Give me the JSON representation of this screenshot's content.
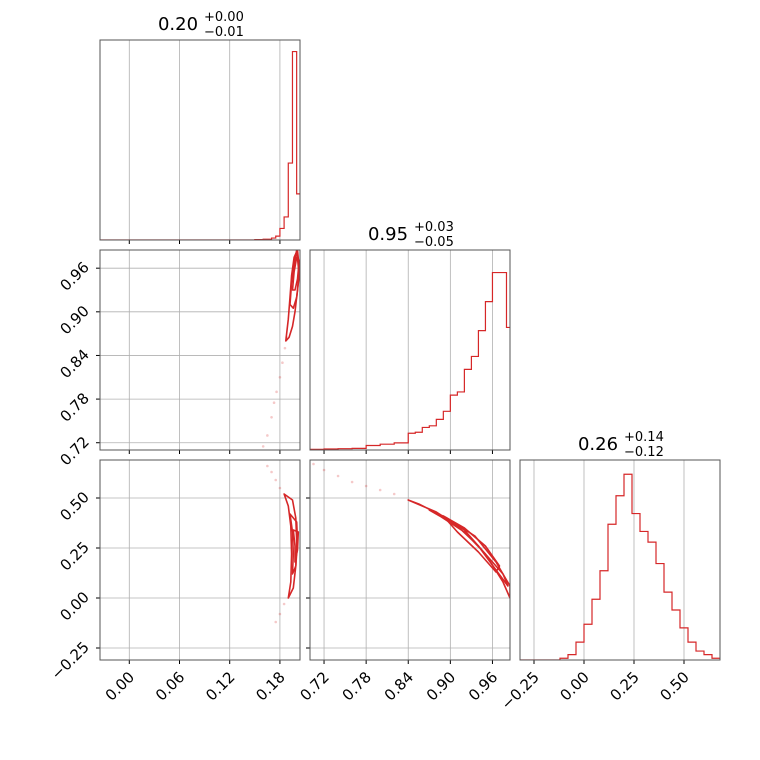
{
  "chart_data": {
    "type": "corner",
    "color": "#d62728",
    "panels": [
      {
        "id": "hist-p0",
        "kind": "histogram",
        "title": {
          "value": "0.20",
          "plus": "+0.00",
          "minus": "−0.01"
        },
        "xlim": [
          -0.035,
          0.204
        ],
        "xticks": [
          0.0,
          0.06,
          0.12,
          0.18
        ],
        "bins": [
          0.15,
          0.16,
          0.17,
          0.175,
          0.18,
          0.185,
          0.19,
          0.195,
          0.2,
          0.204
        ],
        "counts": [
          0.01,
          0.02,
          0.05,
          0.1,
          0.3,
          0.6,
          2.0,
          4.9,
          1.2
        ],
        "ymax": 5.2
      },
      {
        "id": "hist-p1",
        "kind": "histogram",
        "title": {
          "value": "0.95",
          "plus": "+0.03",
          "minus": "−0.05"
        },
        "xlim": [
          0.7,
          0.985
        ],
        "xticks": [
          0.72,
          0.78,
          0.84,
          0.9,
          0.96
        ],
        "bins": [
          0.7,
          0.72,
          0.74,
          0.76,
          0.78,
          0.8,
          0.82,
          0.84,
          0.85,
          0.86,
          0.87,
          0.88,
          0.89,
          0.9,
          0.91,
          0.92,
          0.93,
          0.94,
          0.95,
          0.96,
          0.97,
          0.98,
          0.985
        ],
        "counts": [
          0.02,
          0.03,
          0.04,
          0.05,
          0.14,
          0.18,
          0.22,
          0.52,
          0.55,
          0.7,
          0.75,
          0.95,
          1.2,
          1.7,
          1.8,
          2.5,
          2.9,
          3.7,
          4.6,
          5.5,
          5.5,
          3.8
        ],
        "ymax": 6.2
      },
      {
        "id": "hist-p2",
        "kind": "histogram",
        "title": {
          "value": "0.26",
          "plus": "+0.14",
          "minus": "−0.12"
        },
        "xlim": [
          -0.32,
          0.68
        ],
        "xticks": [
          -0.25,
          0.0,
          0.25,
          0.5
        ],
        "bins": [
          -0.12,
          -0.08,
          -0.04,
          0.0,
          0.04,
          0.08,
          0.12,
          0.16,
          0.2,
          0.24,
          0.28,
          0.32,
          0.36,
          0.4,
          0.44,
          0.48,
          0.52,
          0.56,
          0.6,
          0.64,
          0.68
        ],
        "counts": [
          0.05,
          0.15,
          0.5,
          1.0,
          1.7,
          2.5,
          3.8,
          4.6,
          5.2,
          4.1,
          3.6,
          3.3,
          2.7,
          1.9,
          1.4,
          0.9,
          0.5,
          0.25,
          0.15,
          0.05
        ],
        "ymax": 5.6
      },
      {
        "id": "contour-p0-p1",
        "kind": "contour",
        "xlim": [
          -0.035,
          0.204
        ],
        "ylim": [
          0.71,
          0.985
        ],
        "xticks": [
          0.0,
          0.06,
          0.12,
          0.18
        ],
        "yticks": [
          0.72,
          0.78,
          0.84,
          0.9,
          0.96
        ],
        "scatter": [
          [
            0.16,
            0.715
          ],
          [
            0.165,
            0.73
          ],
          [
            0.17,
            0.755
          ],
          [
            0.173,
            0.775
          ],
          [
            0.176,
            0.79
          ],
          [
            0.18,
            0.81
          ],
          [
            0.183,
            0.83
          ],
          [
            0.186,
            0.85
          ],
          [
            0.188,
            0.865
          ]
        ],
        "contours": [
          [
            [
              0.187,
              0.86
            ],
            [
              0.19,
              0.89
            ],
            [
              0.192,
              0.92
            ],
            [
              0.194,
              0.95
            ],
            [
              0.197,
              0.975
            ],
            [
              0.201,
              0.985
            ],
            [
              0.203,
              0.96
            ],
            [
              0.201,
              0.93
            ],
            [
              0.198,
              0.9
            ],
            [
              0.195,
              0.88
            ],
            [
              0.191,
              0.865
            ]
          ],
          [
            [
              0.192,
              0.91
            ],
            [
              0.194,
              0.94
            ],
            [
              0.197,
              0.965
            ],
            [
              0.2,
              0.985
            ],
            [
              0.203,
              0.95
            ],
            [
              0.2,
              0.92
            ],
            [
              0.196,
              0.905
            ]
          ],
          [
            [
              0.195,
              0.93
            ],
            [
              0.197,
              0.955
            ],
            [
              0.2,
              0.975
            ],
            [
              0.203,
              0.97
            ],
            [
              0.201,
              0.945
            ],
            [
              0.198,
              0.93
            ]
          ]
        ]
      },
      {
        "id": "contour-p0-p2",
        "kind": "contour",
        "xlim": [
          -0.035,
          0.204
        ],
        "ylim": [
          -0.31,
          0.69
        ],
        "xticks": [
          0.0,
          0.06,
          0.12,
          0.18
        ],
        "yticks": [
          -0.25,
          0.0,
          0.25,
          0.5
        ],
        "scatter": [
          [
            0.165,
            0.66
          ],
          [
            0.17,
            0.63
          ],
          [
            0.175,
            0.59
          ],
          [
            0.18,
            0.55
          ],
          [
            0.185,
            -0.03
          ],
          [
            0.18,
            -0.08
          ],
          [
            0.175,
            -0.12
          ]
        ],
        "contours": [
          [
            [
              0.185,
              0.52
            ],
            [
              0.19,
              0.46
            ],
            [
              0.193,
              0.36
            ],
            [
              0.194,
              0.22
            ],
            [
              0.193,
              0.08
            ],
            [
              0.19,
              0.0
            ],
            [
              0.196,
              0.05
            ],
            [
              0.199,
              0.16
            ],
            [
              0.2,
              0.28
            ],
            [
              0.199,
              0.4
            ],
            [
              0.195,
              0.49
            ]
          ],
          [
            [
              0.192,
              0.42
            ],
            [
              0.195,
              0.33
            ],
            [
              0.196,
              0.22
            ],
            [
              0.195,
              0.12
            ],
            [
              0.199,
              0.16
            ],
            [
              0.201,
              0.28
            ],
            [
              0.2,
              0.38
            ]
          ],
          [
            [
              0.196,
              0.34
            ],
            [
              0.198,
              0.26
            ],
            [
              0.198,
              0.18
            ],
            [
              0.201,
              0.24
            ],
            [
              0.202,
              0.33
            ]
          ]
        ]
      },
      {
        "id": "contour-p1-p2",
        "kind": "contour",
        "xlim": [
          0.7,
          0.985
        ],
        "ylim": [
          -0.31,
          0.69
        ],
        "xticks": [
          0.72,
          0.78,
          0.84,
          0.9,
          0.96
        ],
        "yticks": [
          -0.25,
          0.0,
          0.25,
          0.5
        ],
        "scatter": [
          [
            0.705,
            0.67
          ],
          [
            0.72,
            0.64
          ],
          [
            0.74,
            0.61
          ],
          [
            0.76,
            0.58
          ],
          [
            0.78,
            0.56
          ],
          [
            0.8,
            0.54
          ],
          [
            0.82,
            0.52
          ]
        ],
        "contours": [
          [
            [
              0.84,
              0.49
            ],
            [
              0.88,
              0.43
            ],
            [
              0.92,
              0.34
            ],
            [
              0.95,
              0.22
            ],
            [
              0.975,
              0.08
            ],
            [
              0.985,
              0.0
            ],
            [
              0.985,
              0.06
            ],
            [
              0.965,
              0.18
            ],
            [
              0.935,
              0.31
            ],
            [
              0.895,
              0.4
            ],
            [
              0.855,
              0.47
            ]
          ],
          [
            [
              0.87,
              0.44
            ],
            [
              0.91,
              0.36
            ],
            [
              0.94,
              0.26
            ],
            [
              0.965,
              0.14
            ],
            [
              0.982,
              0.06
            ],
            [
              0.975,
              0.12
            ],
            [
              0.95,
              0.22
            ],
            [
              0.92,
              0.33
            ],
            [
              0.885,
              0.41
            ]
          ],
          [
            [
              0.89,
              0.41
            ],
            [
              0.92,
              0.35
            ],
            [
              0.95,
              0.26
            ],
            [
              0.97,
              0.16
            ],
            [
              0.965,
              0.13
            ],
            [
              0.94,
              0.23
            ],
            [
              0.91,
              0.33
            ]
          ]
        ]
      }
    ]
  }
}
